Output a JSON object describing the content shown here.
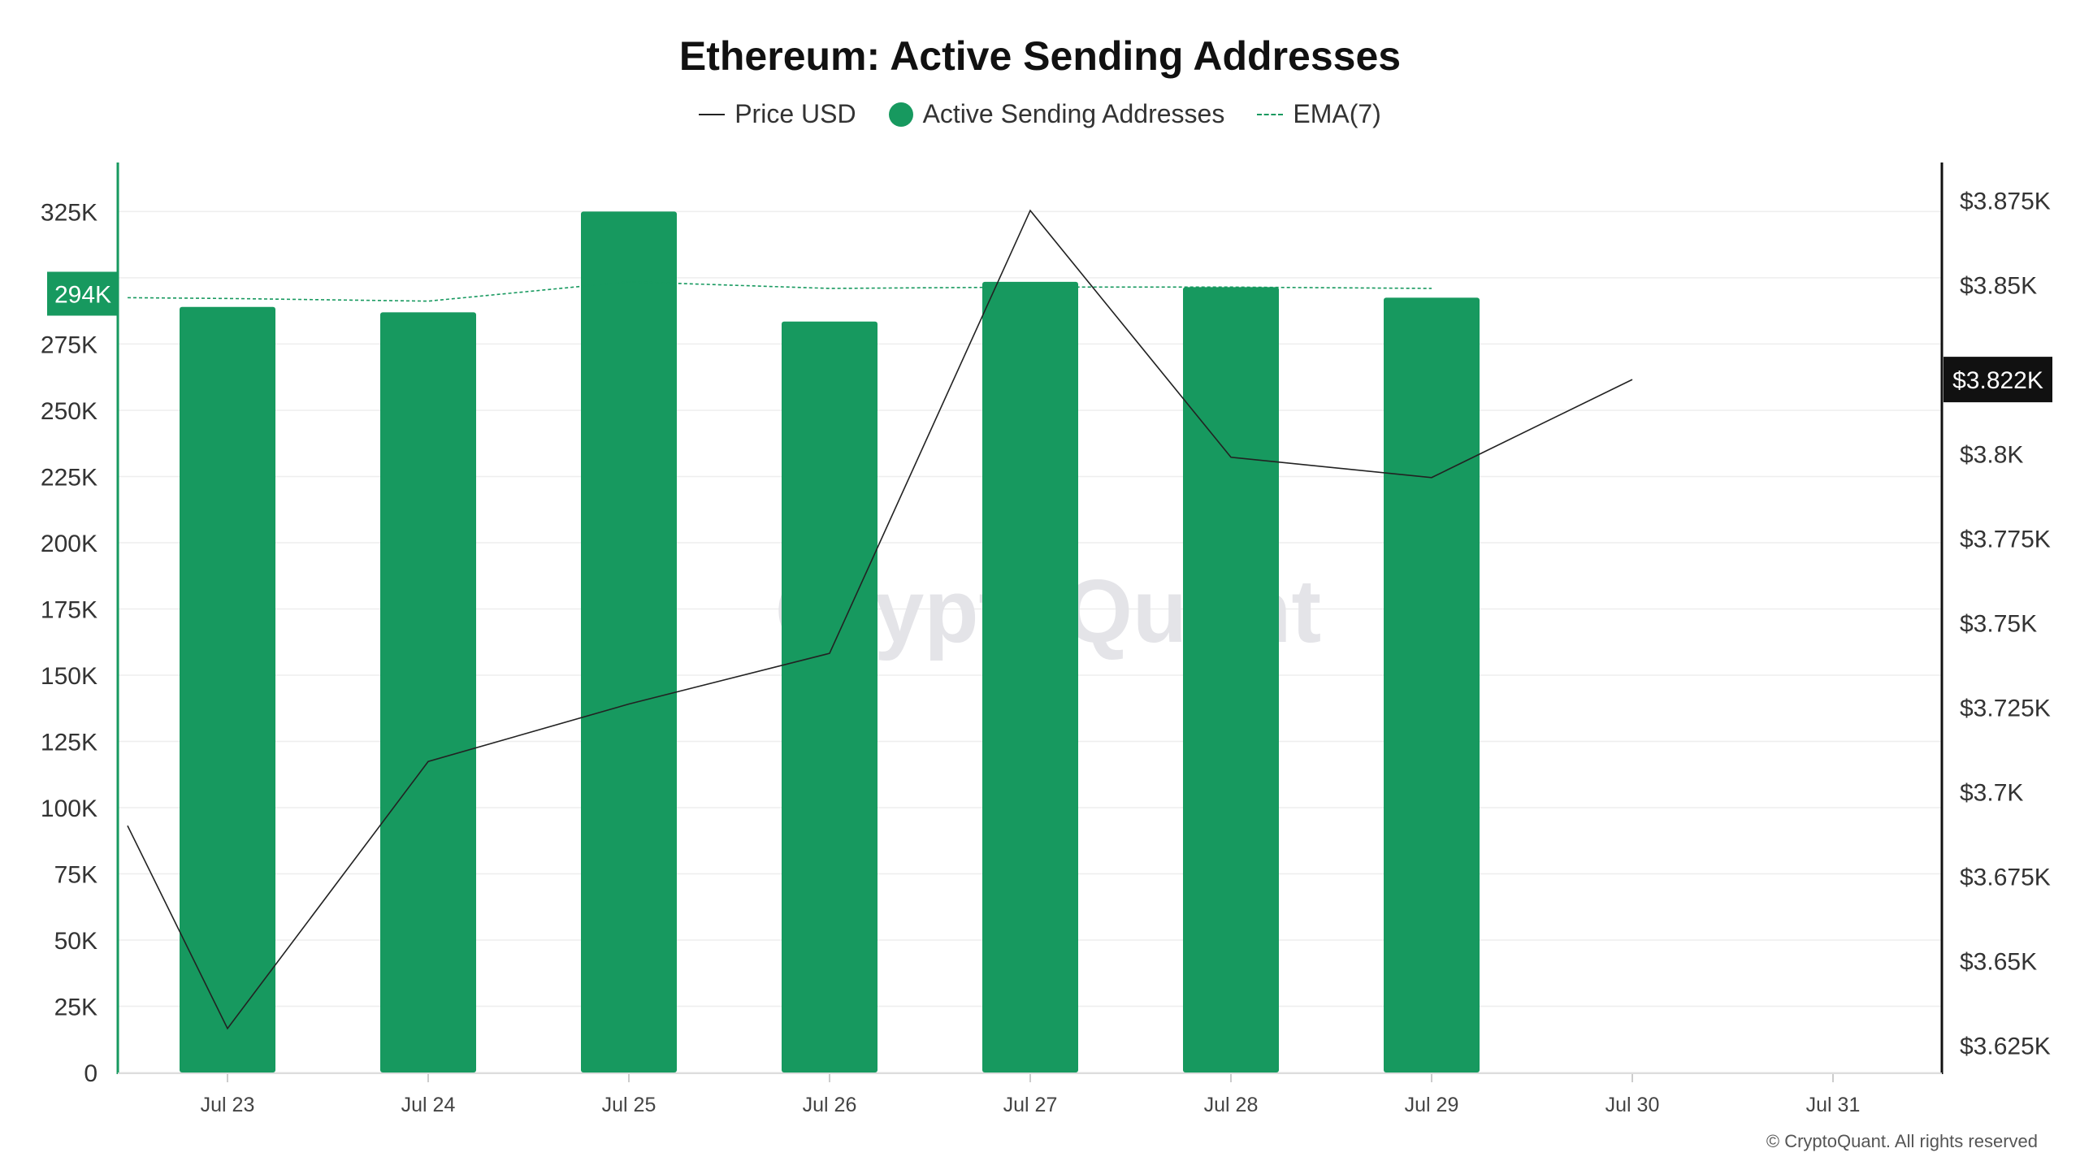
{
  "chart_data": {
    "type": "bar",
    "title": "Ethereum: Active Sending Addresses",
    "categories": [
      "Jul 23",
      "Jul 24",
      "Jul 25",
      "Jul 26",
      "Jul 27",
      "Jul 28",
      "Jul 29",
      "Jul 30",
      "Jul 31"
    ],
    "series": [
      {
        "name": "Active Sending Addresses",
        "type": "bar",
        "axis": "left",
        "color": "#17995f",
        "values": [
          289000,
          287000,
          325000,
          283500,
          298500,
          296500,
          292500,
          null,
          null
        ]
      },
      {
        "name": "EMA(7)",
        "type": "line",
        "style": "dashed",
        "axis": "left",
        "color": "#17995f",
        "x": [
          -0.5,
          0,
          1,
          2,
          3,
          4,
          5,
          6
        ],
        "values": [
          292500,
          292200,
          291200,
          298500,
          296000,
          296500,
          296500,
          296000
        ]
      },
      {
        "name": "Price USD",
        "type": "line",
        "axis": "right",
        "color": "#222222",
        "x": [
          -0.5,
          0,
          1,
          2,
          3,
          4,
          5,
          6,
          7
        ],
        "values": [
          3690,
          3630,
          3709,
          3726,
          3741,
          3872,
          3799,
          3793,
          3822
        ]
      }
    ],
    "left_axis": {
      "ticks": [
        "0",
        "25K",
        "50K",
        "75K",
        "100K",
        "125K",
        "150K",
        "175K",
        "200K",
        "225K",
        "250K",
        "275K",
        "325K"
      ],
      "tick_values": [
        0,
        25000,
        50000,
        75000,
        100000,
        125000,
        150000,
        175000,
        200000,
        225000,
        250000,
        275000,
        325000
      ],
      "ylim": [
        0,
        342000
      ],
      "current_label": "294K",
      "current_value": 294000
    },
    "right_axis": {
      "ticks": [
        "$3.625K",
        "$3.65K",
        "$3.675K",
        "$3.7K",
        "$3.725K",
        "$3.75K",
        "$3.775K",
        "$3.8K",
        "$3.85K",
        "$3.875K"
      ],
      "tick_values": [
        3625,
        3650,
        3675,
        3700,
        3725,
        3750,
        3775,
        3800,
        3850,
        3875
      ],
      "ylim": [
        3617,
        3885
      ],
      "current_label": "$3.822K",
      "current_value": 3822
    },
    "legend": {
      "placement": "top-center",
      "items": [
        "Price USD",
        "Active Sending Addresses",
        "EMA(7)"
      ]
    },
    "grid": true,
    "watermark": "CryptoQuant",
    "footer": "© CryptoQuant. All rights reserved"
  }
}
